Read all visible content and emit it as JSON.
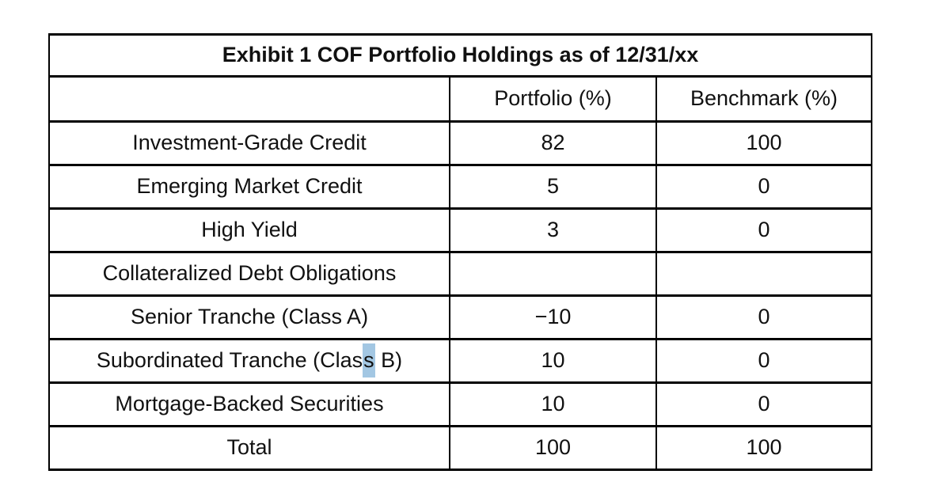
{
  "table": {
    "title": "Exhibit 1 COF Portfolio Holdings as of 12/31/xx",
    "columns": {
      "category": "",
      "portfolio": "Portfolio (%)",
      "benchmark": "Benchmark (%)"
    },
    "rows": [
      {
        "label": "Investment-Grade Credit",
        "portfolio": "82",
        "benchmark": "100"
      },
      {
        "label": "Emerging Market Credit",
        "portfolio": "5",
        "benchmark": "0"
      },
      {
        "label": "High Yield",
        "portfolio": "3",
        "benchmark": "0"
      },
      {
        "label": "Collateralized Debt Obligations",
        "portfolio": "",
        "benchmark": ""
      },
      {
        "label": "Senior Tranche (Class A)",
        "portfolio": "−10",
        "benchmark": "0"
      },
      {
        "label_pre": "Subordinated Tranche (Clas",
        "label_selected": "s",
        "label_post": " B)",
        "portfolio": "10",
        "benchmark": "0"
      },
      {
        "label": "Mortgage-Backed Securities",
        "portfolio": "10",
        "benchmark": "0"
      },
      {
        "label": "Total",
        "portfolio": "100",
        "benchmark": "100"
      }
    ],
    "colors": {
      "selection_highlight": "#a3c7e3",
      "border": "#000000",
      "text": "#111111"
    }
  }
}
